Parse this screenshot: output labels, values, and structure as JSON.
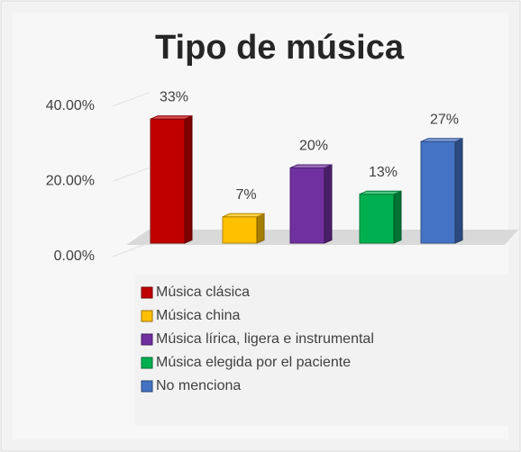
{
  "chart_data": {
    "type": "bar3d",
    "title": "Tipo de música",
    "categories": [
      "Música clásica",
      "Música china",
      "Música lírica, ligera e instrumental",
      "Música elegida por el paciente",
      "No menciona"
    ],
    "values": [
      33,
      7,
      20,
      13,
      27
    ],
    "value_labels": [
      "33%",
      "7%",
      "20%",
      "13%",
      "27%"
    ],
    "colors": [
      "#c00000",
      "#ffc000",
      "#7030a0",
      "#00b050",
      "#4472c4"
    ],
    "ylim": [
      0,
      40
    ],
    "yticks": [
      {
        "value": 0,
        "label": "0.00%"
      },
      {
        "value": 20,
        "label": "20.00%"
      },
      {
        "value": 40,
        "label": "40.00%"
      }
    ],
    "grid": true,
    "legend": "bottom"
  }
}
